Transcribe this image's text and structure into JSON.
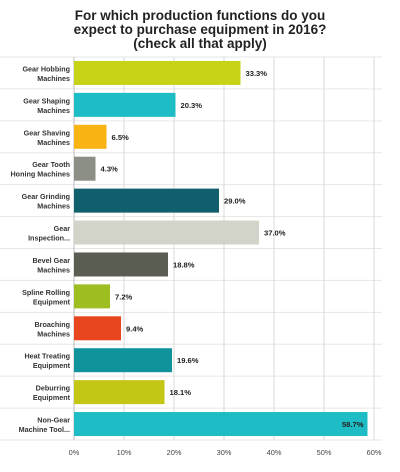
{
  "chart_data": {
    "type": "bar",
    "orientation": "horizontal",
    "title_lines": [
      "For which production functions do you",
      "expect to purchase equipment in 2016?",
      "(check all that apply)"
    ],
    "categories": [
      [
        "Gear Hobbing",
        "Machines"
      ],
      [
        "Gear Shaping",
        "Machines"
      ],
      [
        "Gear Shaving",
        "Machines"
      ],
      [
        "Gear Tooth",
        "Honing Machines"
      ],
      [
        "Gear Grinding",
        "Machines"
      ],
      [
        "Gear",
        "Inspection..."
      ],
      [
        "Bevel Gear",
        "Machines"
      ],
      [
        "Spline Rolling",
        "Equipment"
      ],
      [
        "Broaching",
        "Machines"
      ],
      [
        "Heat Treating",
        "Equipment"
      ],
      [
        "Deburring",
        "Equipment"
      ],
      [
        "Non-Gear",
        "Machine Tool..."
      ]
    ],
    "values": [
      33.3,
      20.3,
      6.5,
      4.3,
      29.0,
      37.0,
      18.8,
      7.2,
      9.4,
      19.6,
      18.1,
      58.7
    ],
    "value_labels": [
      "33.3%",
      "20.3%",
      "6.5%",
      "4.3%",
      "29.0%",
      "37.0%",
      "18.8%",
      "7.2%",
      "9.4%",
      "19.6%",
      "18.1%",
      "58.7%"
    ],
    "colors": [
      "#c7d317",
      "#1ebcc5",
      "#f9b313",
      "#8b8f85",
      "#115f6d",
      "#d3d4c9",
      "#5a5e52",
      "#9ebd20",
      "#e8461f",
      "#10939b",
      "#c4c616",
      "#1ebcc5"
    ],
    "xlim": [
      0,
      60
    ],
    "ticks": [
      0,
      10,
      20,
      30,
      40,
      50,
      60
    ],
    "tick_labels": [
      "0%",
      "10%",
      "20%",
      "30%",
      "40%",
      "50%",
      "60%"
    ],
    "grid": true,
    "legend": "none"
  }
}
